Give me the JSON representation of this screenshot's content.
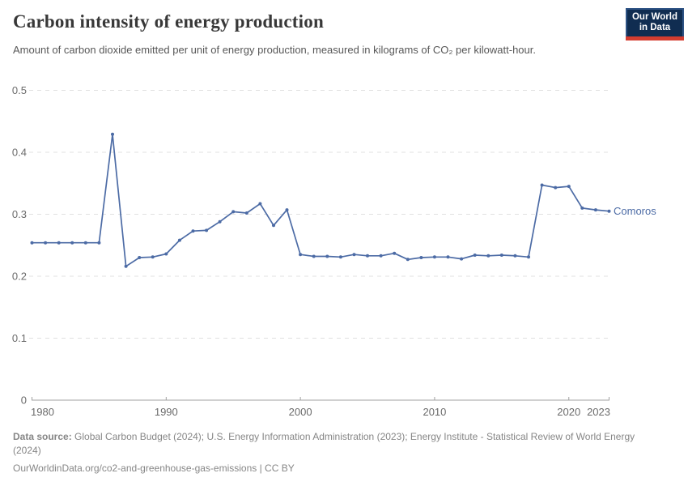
{
  "header": {
    "title": "Carbon intensity of energy production",
    "subtitle": "Amount of carbon dioxide emitted per unit of energy production, measured in kilograms of CO₂ per kilowatt-hour."
  },
  "logo": {
    "line1": "Our World",
    "line2": "in Data",
    "bg_color": "#102d51",
    "border_color": "#2e5384",
    "accent_color": "#d43d30"
  },
  "footer": {
    "datasource_label": "Data source:",
    "datasource_text": " Global Carbon Budget (2024); U.S. Energy Information Administration (2023); Energy Institute - Statistical Review of World Energy (2024)",
    "link": "OurWorldinData.org/co2-and-greenhouse-gas-emissions",
    "license": " | CC BY"
  },
  "chart_data": {
    "type": "line",
    "title": "Carbon intensity of energy production",
    "subtitle": "Amount of carbon dioxide emitted per unit of energy production, measured in kilograms of CO₂ per kilowatt-hour.",
    "xlabel": "",
    "ylabel": "kilograms of CO₂ per kilowatt-hour",
    "x_range": [
      1980,
      2023
    ],
    "ylim": [
      0,
      0.5
    ],
    "grid": "horizontal dashed",
    "legend_position": "end-of-line label",
    "x_ticks": {
      "values": [
        1980,
        1990,
        2000,
        2010,
        2020,
        2023
      ],
      "labels": [
        "1980",
        "1990",
        "2000",
        "2010",
        "2020",
        "2023"
      ]
    },
    "y_ticks": {
      "values": [
        0,
        0.1,
        0.2,
        0.3,
        0.4,
        0.5
      ],
      "labels": [
        "0",
        "0.1",
        "0.2",
        "0.3",
        "0.4",
        "0.5"
      ]
    },
    "colors": {
      "line": "#4c6ba5",
      "grid": "#e0e0e0",
      "axis": "#a0a0a0",
      "tick_text": "#6b6b6b"
    },
    "series": [
      {
        "name": "Comoros",
        "color": "#4c6ba5",
        "x": [
          1980,
          1981,
          1982,
          1983,
          1984,
          1985,
          1986,
          1987,
          1988,
          1989,
          1990,
          1991,
          1992,
          1993,
          1994,
          1995,
          1996,
          1997,
          1998,
          1999,
          2000,
          2001,
          2002,
          2003,
          2004,
          2005,
          2006,
          2007,
          2008,
          2009,
          2010,
          2011,
          2012,
          2013,
          2014,
          2015,
          2016,
          2017,
          2018,
          2019,
          2020,
          2021,
          2022,
          2023
        ],
        "values": [
          0.254,
          0.254,
          0.254,
          0.254,
          0.254,
          0.254,
          0.429,
          0.216,
          0.23,
          0.231,
          0.236,
          0.258,
          0.273,
          0.274,
          0.288,
          0.304,
          0.302,
          0.317,
          0.282,
          0.307,
          0.235,
          0.232,
          0.232,
          0.231,
          0.235,
          0.233,
          0.233,
          0.237,
          0.227,
          0.23,
          0.231,
          0.231,
          0.228,
          0.234,
          0.233,
          0.234,
          0.233,
          0.231,
          0.347,
          0.343,
          0.345,
          0.31,
          0.307,
          0.305
        ]
      }
    ]
  }
}
